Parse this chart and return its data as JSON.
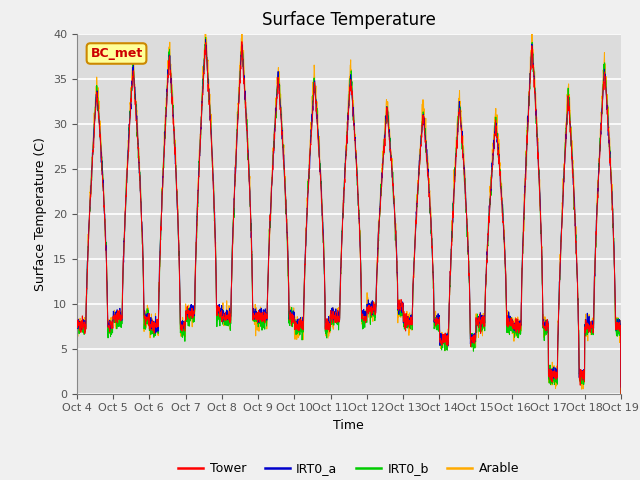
{
  "title": "Surface Temperature",
  "xlabel": "Time",
  "ylabel": "Surface Temperature (C)",
  "annotation": "BC_met",
  "ylim": [
    0,
    40
  ],
  "yticks": [
    0,
    5,
    10,
    15,
    20,
    25,
    30,
    35,
    40
  ],
  "xtick_labels": [
    "Oct 4",
    "Oct 5",
    "Oct 6",
    "Oct 7",
    "Oct 8",
    "Oct 9",
    "Oct 10",
    "Oct 11",
    "Oct 12",
    "Oct 13",
    "Oct 14",
    "Oct 15",
    "Oct 16",
    "Oct 17",
    "Oct 18",
    "Oct 19"
  ],
  "series_colors": {
    "Tower": "#ff0000",
    "IRT0_a": "#0000cc",
    "IRT0_b": "#00cc00",
    "Arable": "#ffaa00"
  },
  "background_color": "#dcdcdc",
  "fig_background": "#f0f0f0",
  "annotation_bg": "#ffff99",
  "annotation_border": "#cc8800",
  "annotation_text_color": "#cc0000",
  "day_maxes_base": [
    33.5,
    36.0,
    37.5,
    39.0,
    38.5,
    35.0,
    34.5,
    35.0,
    31.5,
    31.0,
    32.0,
    30.0,
    38.5,
    33.0,
    36.0
  ],
  "day_mins_base": [
    7.5,
    8.5,
    7.5,
    9.0,
    8.5,
    8.5,
    7.5,
    8.5,
    9.5,
    8.0,
    6.0,
    8.0,
    7.5,
    2.0,
    7.5
  ]
}
